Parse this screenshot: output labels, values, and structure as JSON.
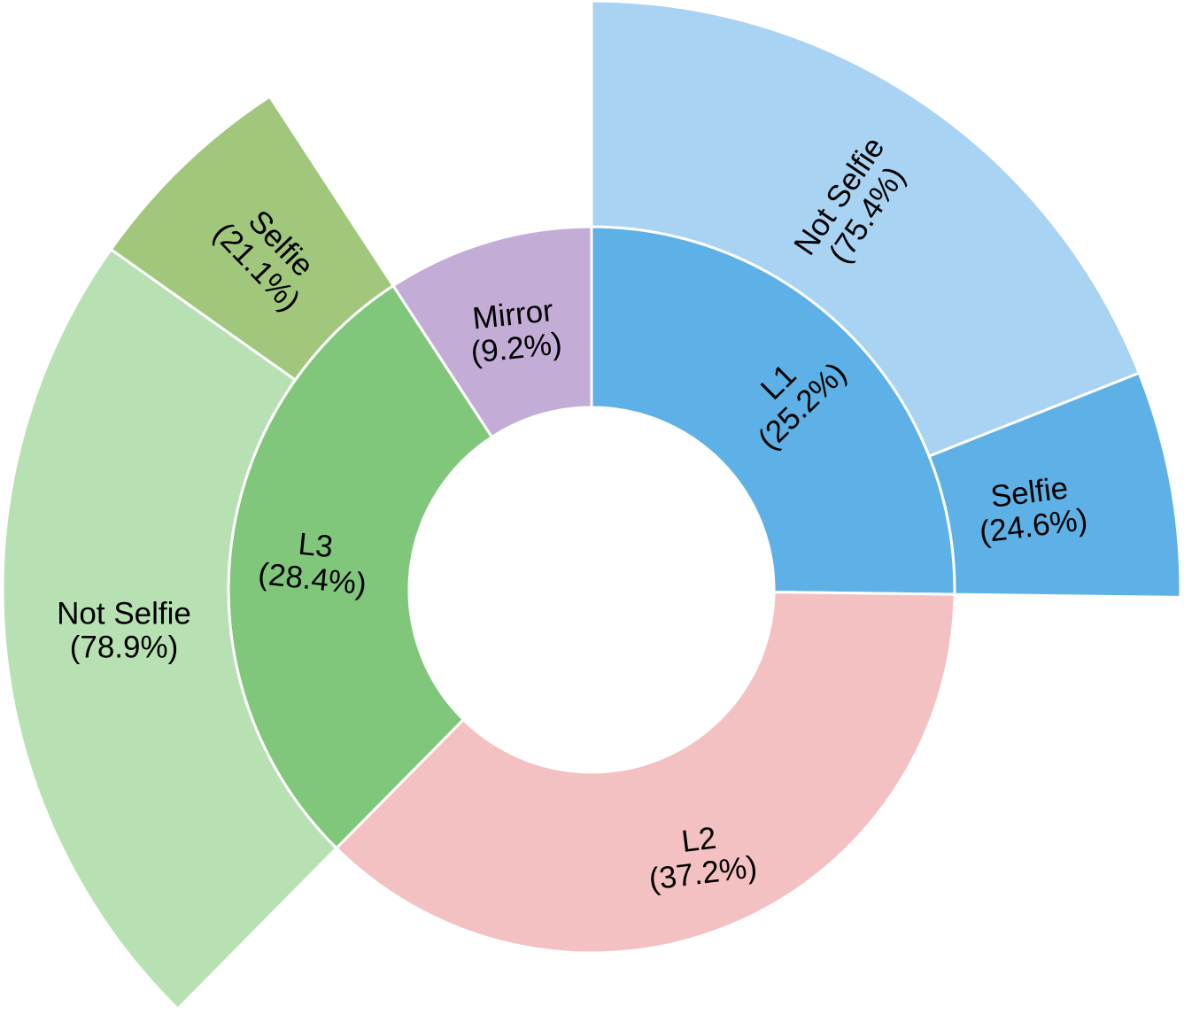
{
  "chart_data": {
    "type": "sunburst",
    "title": "",
    "segments": [
      {
        "name": "L1",
        "percent": 25.2,
        "value_label": "(25.2%)",
        "color": "#5db1e6",
        "children": [
          {
            "name": "Not Selfie",
            "percent": 75.4,
            "value_label": "(75.4%)",
            "color": "#a8d3f2"
          },
          {
            "name": "Selfie",
            "percent": 24.6,
            "value_label": "(24.6%)",
            "color": "#5db1e6"
          }
        ]
      },
      {
        "name": "L2",
        "percent": 37.2,
        "value_label": "(37.2%)",
        "color": "#f4c1c2",
        "children": []
      },
      {
        "name": "L3",
        "percent": 28.4,
        "value_label": "(28.4%)",
        "color": "#80c77c",
        "children": [
          {
            "name": "Not Selfie",
            "percent": 78.9,
            "value_label": "(78.9%)",
            "color": "#b8e1b3"
          },
          {
            "name": "Selfie",
            "percent": 21.1,
            "value_label": "(21.1%)",
            "color": "#a0c77c"
          }
        ]
      },
      {
        "name": "Mirror",
        "percent": 9.2,
        "value_label": "(9.2%)",
        "color": "#c3add6",
        "children": []
      }
    ]
  }
}
